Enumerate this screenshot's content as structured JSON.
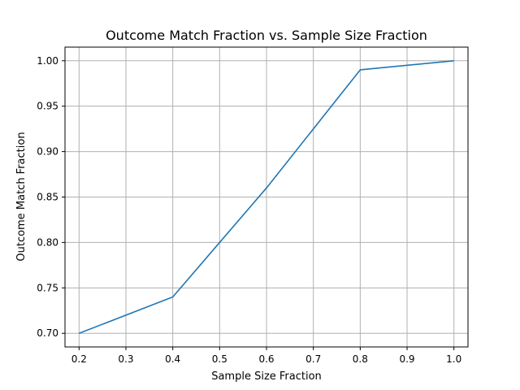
{
  "chart_data": {
    "type": "line",
    "title": "Outcome Match Fraction vs. Sample Size Fraction",
    "xlabel": "Sample Size Fraction",
    "ylabel": "Outcome Match Fraction",
    "xlim": [
      0.17,
      1.03
    ],
    "ylim": [
      0.685,
      1.015
    ],
    "xticks": [
      0.2,
      0.3,
      0.4,
      0.5,
      0.6,
      0.7,
      0.8,
      0.9,
      1.0
    ],
    "xtick_labels": [
      "0.2",
      "0.3",
      "0.4",
      "0.5",
      "0.6",
      "0.7",
      "0.8",
      "0.9",
      "1.0"
    ],
    "yticks": [
      0.7,
      0.75,
      0.8,
      0.85,
      0.9,
      0.95,
      1.0
    ],
    "ytick_labels": [
      "0.70",
      "0.75",
      "0.80",
      "0.85",
      "0.90",
      "0.95",
      "1.00"
    ],
    "grid": true,
    "series": [
      {
        "x": [
          0.2,
          0.4,
          0.6,
          0.8,
          1.0
        ],
        "y": [
          0.7,
          0.74,
          0.86,
          0.99,
          1.0
        ],
        "color": "#1f77b4"
      }
    ]
  }
}
